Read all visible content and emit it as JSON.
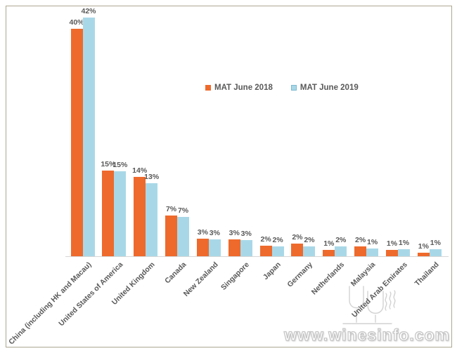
{
  "watermark": {
    "site_text": "www.winesinfo.com"
  },
  "colors": {
    "bar_2018": "#ee6a2c",
    "bar_2019": "#a8d8e8",
    "label_text": "#595959",
    "axis_line": "#d6d6d6",
    "frame_border": "#aca890",
    "watermark_gray": "#cccccc"
  },
  "chart_data": {
    "type": "bar",
    "title": "",
    "xlabel": "",
    "ylabel": "",
    "value_suffix": "%",
    "ylim": [
      0,
      45
    ],
    "grid": false,
    "legend_position": "inside-upper-center-right",
    "categories": [
      "China (including HK and Macau)",
      "United States of America",
      "United Kingdom",
      "Canada",
      "New Zealand",
      "Singapore",
      "Japan",
      "Germany",
      "Netherlands",
      "Malaysia",
      "United Arab Emirates",
      "Thailand"
    ],
    "series": [
      {
        "name": "MAT June 2018",
        "color": "#ee6a2c",
        "values": [
          40,
          15,
          14,
          7,
          3,
          3,
          2,
          2,
          1,
          2,
          1,
          1
        ],
        "render_heights": [
          40,
          15.1,
          13.9,
          7.1,
          3.1,
          3.0,
          1.9,
          2.2,
          1.1,
          1.75,
          1.05,
          0.6
        ]
      },
      {
        "name": "MAT June 2019",
        "color": "#a8d8e8",
        "values": [
          42,
          15,
          13,
          7,
          3,
          3,
          2,
          2,
          2,
          1,
          1,
          1
        ],
        "render_heights": [
          42,
          14.9,
          12.9,
          6.9,
          3.0,
          2.9,
          1.75,
          1.75,
          1.75,
          1.3,
          1.25,
          1.25
        ]
      }
    ]
  }
}
